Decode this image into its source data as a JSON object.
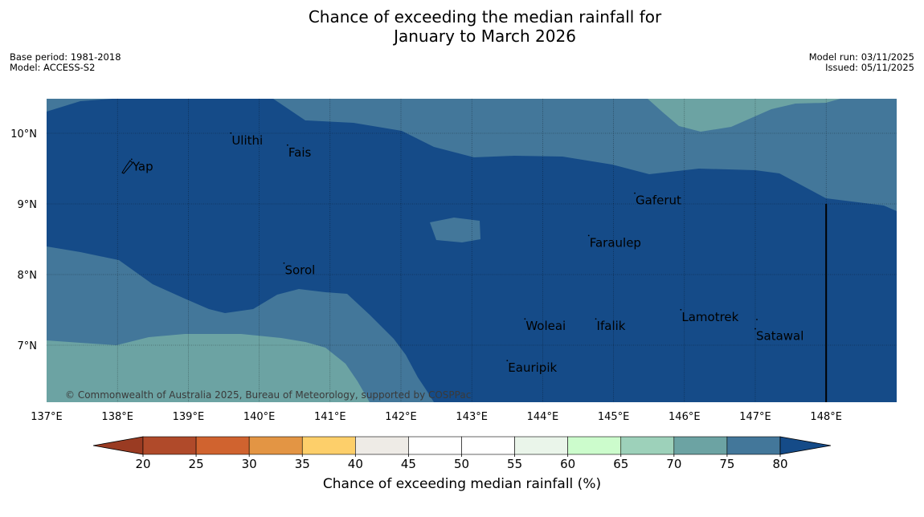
{
  "title": {
    "line1": "Chance of exceeding the median rainfall for",
    "line2": "January to March 2026"
  },
  "meta": {
    "base_period": "Base period: 1981-2018",
    "model": "Model: ACCESS-S2",
    "model_run": "Model run: 03/11/2025",
    "issued": "Issued: 05/11/2025"
  },
  "map": {
    "lon_range": [
      137,
      149
    ],
    "lat_range": [
      6.2,
      10.5
    ],
    "lon_ticks": [
      {
        "value": 137,
        "label": "137°E"
      },
      {
        "value": 138,
        "label": "138°E"
      },
      {
        "value": 139,
        "label": "139°E"
      },
      {
        "value": 140,
        "label": "140°E"
      },
      {
        "value": 141,
        "label": "141°E"
      },
      {
        "value": 142,
        "label": "142°E"
      },
      {
        "value": 143,
        "label": "143°E"
      },
      {
        "value": 144,
        "label": "144°E"
      },
      {
        "value": 145,
        "label": "145°E"
      },
      {
        "value": 146,
        "label": "146°E"
      },
      {
        "value": 147,
        "label": "147°E"
      },
      {
        "value": 148,
        "label": "148°E"
      }
    ],
    "lat_ticks": [
      {
        "value": 10,
        "label": "10°N"
      },
      {
        "value": 9,
        "label": "9°N"
      },
      {
        "value": 8,
        "label": "8°N"
      },
      {
        "value": 7,
        "label": "7°N"
      }
    ],
    "places": [
      {
        "name": "Yap",
        "lon": 138.2,
        "lat": 9.53
      },
      {
        "name": "Ulithi",
        "lon": 139.6,
        "lat": 9.9
      },
      {
        "name": "Fais",
        "lon": 140.4,
        "lat": 9.73
      },
      {
        "name": "Gaferut",
        "lon": 145.3,
        "lat": 9.05
      },
      {
        "name": "Faraulep",
        "lon": 144.65,
        "lat": 8.45
      },
      {
        "name": "Sorol",
        "lon": 140.35,
        "lat": 8.06
      },
      {
        "name": "Woleai",
        "lon": 143.75,
        "lat": 7.27
      },
      {
        "name": "Ifalik",
        "lon": 144.75,
        "lat": 7.27
      },
      {
        "name": "Lamotrek",
        "lon": 145.95,
        "lat": 7.4
      },
      {
        "name": "Satawal",
        "lon": 147.0,
        "lat": 7.13
      },
      {
        "name": "Eauripik",
        "lon": 143.5,
        "lat": 6.68
      }
    ],
    "boundary_lon": 148,
    "boundary_lat_top": 9.0,
    "copyright": "© Commonwealth of Australia 2025, Bureau of Meteorology, supported by COSPPac"
  },
  "colorbar": {
    "tick_labels": [
      "20",
      "25",
      "30",
      "35",
      "40",
      "45",
      "50",
      "55",
      "60",
      "65",
      "70",
      "75",
      "80"
    ],
    "colors": [
      "#b04a2a",
      "#d0632f",
      "#e39544",
      "#fdcf6a",
      "#eeebe6",
      "#ffffff",
      "#ffffff",
      "#eaf5ea",
      "#ccfccc",
      "#9dd1ba",
      "#6ca3a3",
      "#43779a"
    ],
    "under_color": "#9a3b22",
    "over_color": "#154b88",
    "label": "Chance of exceeding median rainfall (%)"
  },
  "zone_colors": {
    "p80plus": "#154b88",
    "p75_80": "#43779a",
    "p70_75": "#6ca3a3"
  }
}
